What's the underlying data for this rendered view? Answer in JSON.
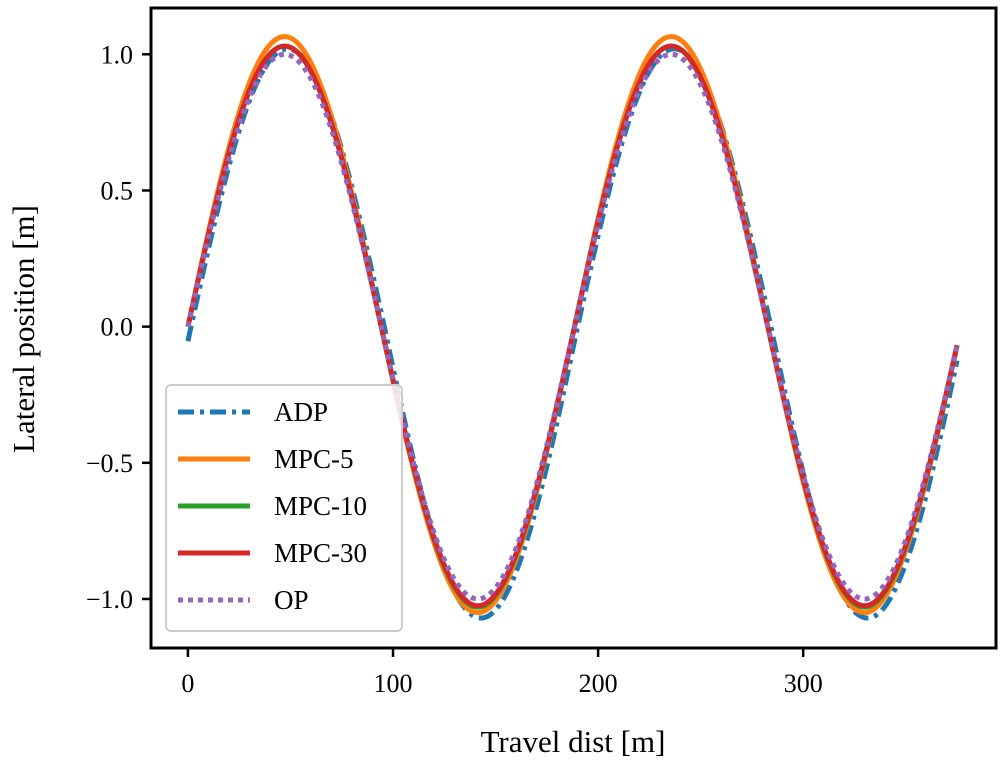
{
  "chart_data": {
    "type": "line",
    "title": "",
    "xlabel": "Travel dist [m]",
    "ylabel": "Lateral position [m]",
    "xlim": [
      -18,
      394
    ],
    "ylim": [
      -1.18,
      1.17
    ],
    "xticks": [
      0,
      100,
      200,
      300
    ],
    "xtick_labels": [
      "0",
      "100",
      "200",
      "300"
    ],
    "yticks": [
      1.0,
      0.5,
      0.0,
      -0.5,
      -1.0
    ],
    "ytick_labels": [
      "1.0",
      "0.5",
      "0.0",
      "−0.5",
      "−1.0"
    ],
    "grid": false,
    "legend_position": "lower-left",
    "x_range": [
      0,
      375
    ],
    "period": 188.5,
    "series": [
      {
        "name": "ADP",
        "color": "#1f77b4",
        "dash": "dashdot",
        "amp_top": 1.02,
        "amp_bottom": 1.07,
        "phase_lag": 1.5
      },
      {
        "name": "MPC-5",
        "color": "#ff7f0e",
        "dash": "solid",
        "amp_top": 1.065,
        "amp_bottom": 1.05,
        "phase_lag": 0.0
      },
      {
        "name": "MPC-10",
        "color": "#2ca02c",
        "dash": "solid",
        "amp_top": 1.03,
        "amp_bottom": 1.03,
        "phase_lag": 0.0
      },
      {
        "name": "MPC-30",
        "color": "#d62728",
        "dash": "solid",
        "amp_top": 1.03,
        "amp_bottom": 1.025,
        "phase_lag": 0.0
      },
      {
        "name": "OP",
        "color": "#9467bd",
        "dash": "dotted",
        "amp_top": 1.0,
        "amp_bottom": 1.0,
        "phase_lag": 0.0
      }
    ]
  }
}
